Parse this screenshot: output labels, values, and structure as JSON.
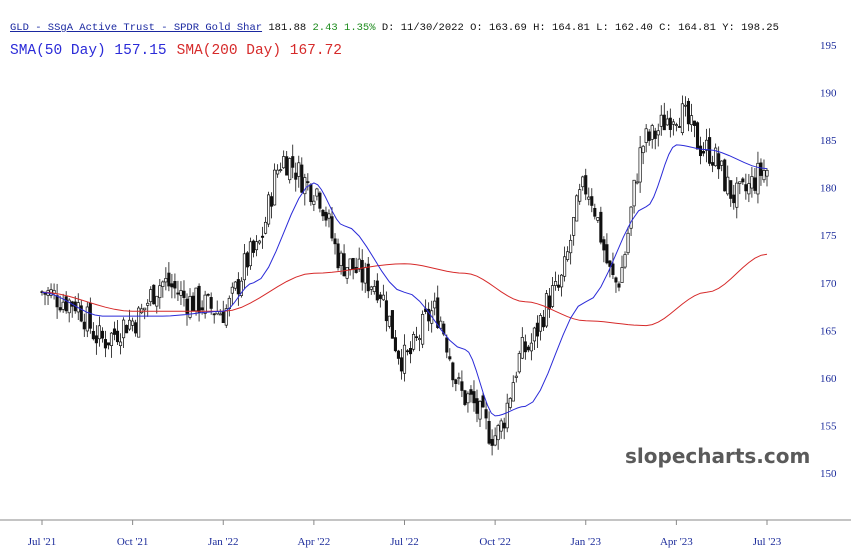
{
  "header": {
    "ticker_label": "GLD - SSgA Active Trust - SPDR Gold Shar",
    "last": "181.88",
    "change": "2.43",
    "change_pct": "1.35%",
    "date": "D: 11/30/2022",
    "open": "O: 163.69",
    "high": "H: 164.81",
    "low": "L: 162.40",
    "close": "C: 164.81",
    "y_value": "Y: 198.25"
  },
  "indicators": {
    "sma50": "SMA(50 Day) 157.15",
    "sma200": "SMA(200 Day) 167.72"
  },
  "watermark": "slopecharts.com",
  "colors": {
    "candle": "#111111",
    "sma50": "#2b2bd8",
    "sma200": "#d62a2a",
    "axis_labels": "#1a2a9a"
  },
  "chart_data": {
    "type": "line",
    "ylim": [
      148,
      196
    ],
    "yticks": [
      150,
      155,
      160,
      165,
      170,
      175,
      180,
      185,
      190,
      195
    ],
    "x_labels": [
      "Jul '21",
      "Oct '21",
      "Jan '22",
      "Apr '22",
      "Jul '22",
      "Oct '22",
      "Jan '23",
      "Apr '23",
      "Jul '23"
    ],
    "series": [
      {
        "name": "Price",
        "x": [
          "Jul '21",
          "Aug '21",
          "Sep '21",
          "Oct '21",
          "Nov '21",
          "Dec '21",
          "Jan '22",
          "Feb '22",
          "Mar '22",
          "Apr '22",
          "May '22",
          "Jun '22",
          "Jul '22",
          "Aug '22",
          "Sep '22",
          "Oct '22",
          "Nov '22",
          "Dec '22",
          "Jan '23",
          "Feb '23",
          "Mar '23",
          "Apr '23",
          "May '23",
          "Jun '23",
          "Jul '23"
        ],
        "values": [
          169,
          168,
          164,
          166,
          170,
          168,
          167,
          173,
          183,
          180,
          172,
          170,
          162,
          167,
          158,
          154,
          163,
          169,
          180,
          170,
          185,
          188,
          184,
          179,
          181.88
        ]
      },
      {
        "name": "SMA(50 Day)",
        "x": [
          "Jul '21",
          "Sep '21",
          "Nov '21",
          "Jan '22",
          "Feb '22",
          "Apr '22",
          "May '22",
          "Jul '22",
          "Sep '22",
          "Oct '22",
          "Nov '22",
          "Jan '23",
          "Mar '23",
          "Apr '23",
          "May '23",
          "Jul '23"
        ],
        "values": [
          169,
          166.5,
          166.5,
          167,
          170,
          180.5,
          176,
          169,
          163,
          156,
          157,
          168,
          178,
          184.5,
          184,
          182
        ]
      },
      {
        "name": "SMA(200 Day)",
        "x": [
          "Jul '21",
          "Oct '21",
          "Jan '22",
          "Apr '22",
          "Jul '22",
          "Sep '22",
          "Nov '22",
          "Jan '23",
          "Mar '23",
          "May '23",
          "Jul '23"
        ],
        "values": [
          169,
          167,
          167,
          171,
          172,
          171,
          168,
          166,
          165.5,
          169,
          173
        ]
      }
    ]
  }
}
